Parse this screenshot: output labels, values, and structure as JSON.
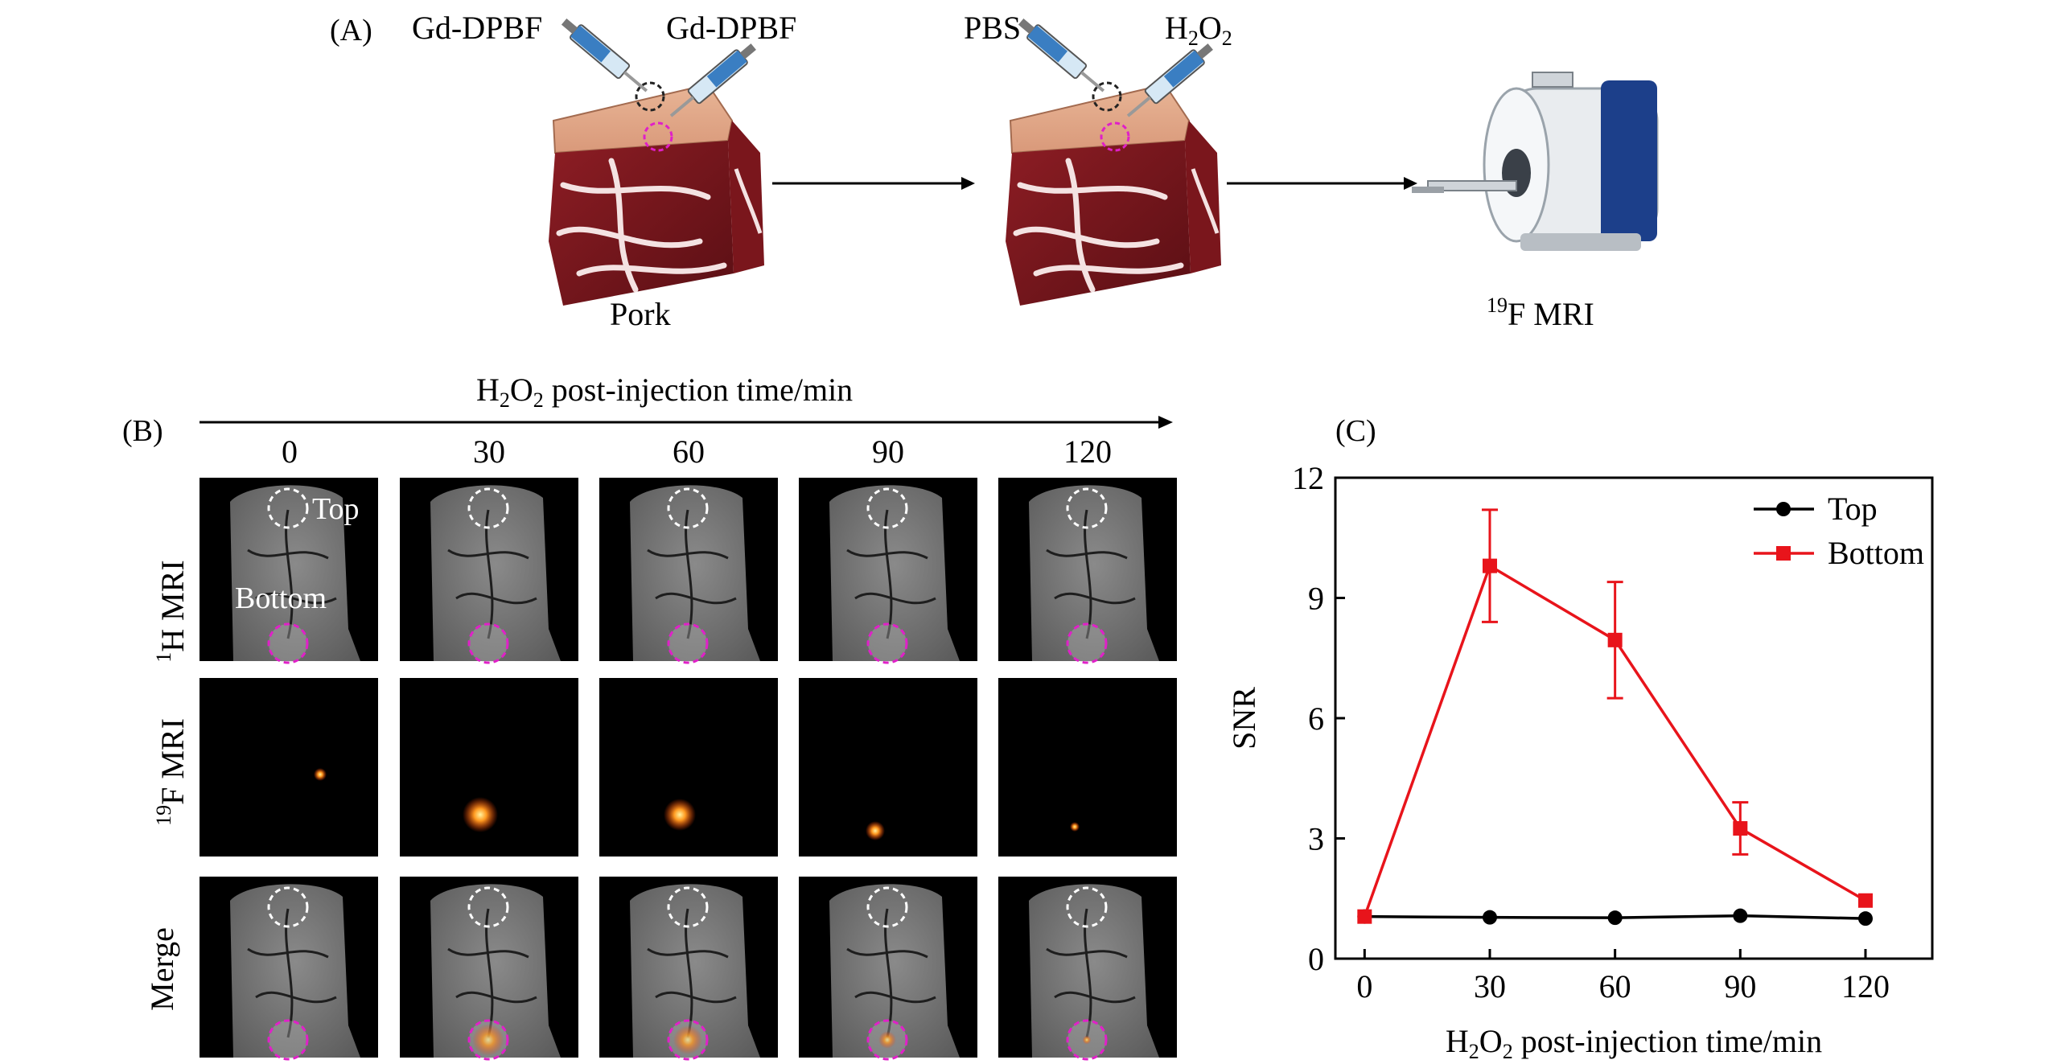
{
  "panelA": {
    "label": "(A)",
    "syringe_left": "Gd-DPBF",
    "syringe_right": "Gd-DPBF",
    "syringe_pbs": "PBS",
    "syringe_h2o2_main": "H",
    "syringe_h2o2_sub": "2",
    "syringe_h2o2_o": "O",
    "syringe_h2o2_sub2": "2",
    "pork_label": "Pork",
    "mri_sup": "19",
    "mri_label": "F MRI"
  },
  "panelB": {
    "label": "(B)",
    "axis_title_h": "H",
    "axis_title_sub": "2",
    "axis_title_o": "O",
    "axis_title_sub2": "2",
    "axis_title_rest": " post-injection time/min",
    "times": [
      "0",
      "30",
      "60",
      "90",
      "120"
    ],
    "row1_sup": "1",
    "row1_label": "H MRI",
    "row2_sup": "19",
    "row2_label": "F MRI",
    "row3_label": "Merge",
    "top_label": "Top",
    "bottom_label": "Bottom"
  },
  "chart_data": {
    "type": "line",
    "panel_label": "(C)",
    "x": [
      0,
      30,
      60,
      90,
      120
    ],
    "xticks": [
      "0",
      "30",
      "60",
      "90",
      "120"
    ],
    "yticks": [
      "0",
      "3",
      "6",
      "9",
      "12"
    ],
    "xlim": [
      -7,
      136
    ],
    "ylim": [
      0,
      12
    ],
    "ylabel": "SNR",
    "xlabel_h": "H",
    "xlabel_sub": "2",
    "xlabel_o": "O",
    "xlabel_sub2": "2",
    "xlabel_rest": " post-injection time/min",
    "legend_position": "top-right",
    "series": [
      {
        "name": "Top",
        "color": "#000000",
        "marker": "circle",
        "values": [
          1.05,
          1.03,
          1.02,
          1.07,
          1.0
        ],
        "errors": [
          0,
          0,
          0,
          0,
          0
        ]
      },
      {
        "name": "Bottom",
        "color": "#e8141b",
        "marker": "square",
        "values": [
          1.05,
          9.8,
          7.95,
          3.25,
          1.45
        ],
        "errors": [
          0,
          1.4,
          1.45,
          0.65,
          0
        ]
      }
    ]
  }
}
